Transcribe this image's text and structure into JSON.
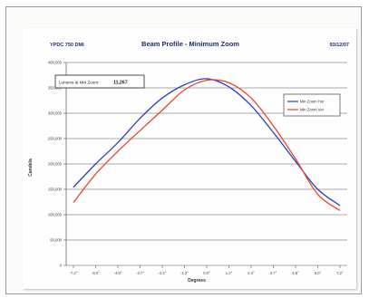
{
  "header": {
    "left": "YPDC 750 DMI",
    "right": "93/12/07"
  },
  "chart_data": {
    "type": "line",
    "title": "Beam Profile - Minimum Zoom",
    "xlabel": "Degrees",
    "ylabel": "Candela",
    "x": [
      "-7.2°",
      "-6.0°",
      "-4.8°",
      "-3.7°",
      "-2.4°",
      "-1.2°",
      "0.0°",
      "1.2°",
      "2.4°",
      "3.7°",
      "4.8°",
      "6.0°",
      "7.2°"
    ],
    "ylim": [
      0,
      400000
    ],
    "yticks": [
      "0",
      "50,000",
      "100,000",
      "150,000",
      "200,000",
      "250,000",
      "300,000",
      "350,000",
      "400,000"
    ],
    "annotation": {
      "label": "Lumens at Min Zoom:",
      "value": "11,267"
    },
    "legend_position": "top-right",
    "series": [
      {
        "name": "Min Zoom Hor",
        "color": "#2b3fbf",
        "values": [
          154000,
          200000,
          242000,
          290000,
          330000,
          356000,
          368000,
          352000,
          315000,
          262000,
          205000,
          150000,
          118000
        ]
      },
      {
        "name": "Min Zoom Ver",
        "color": "#e8452a",
        "values": [
          124000,
          180000,
          225000,
          266000,
          306000,
          346000,
          365000,
          360000,
          330000,
          275000,
          210000,
          140000,
          108000
        ]
      }
    ]
  }
}
